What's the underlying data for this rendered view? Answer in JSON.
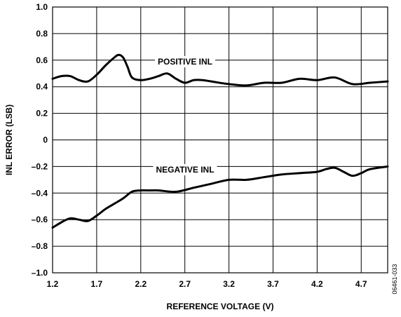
{
  "chart_data": {
    "type": "line",
    "xlabel": "REFERENCE VOLTAGE (V)",
    "ylabel": "INL ERROR (LSB)",
    "xlim": [
      1.2,
      5.0
    ],
    "ylim": [
      -1.0,
      1.0
    ],
    "xticks": [
      1.2,
      1.7,
      2.2,
      2.7,
      3.2,
      3.7,
      4.2,
      4.7
    ],
    "xtick_labels": [
      "1.2",
      "1.7",
      "2.2",
      "2.7",
      "3.2",
      "3.7",
      "4.2",
      "4.7"
    ],
    "yticks": [
      1.0,
      0.8,
      0.6,
      0.4,
      0.2,
      0,
      -0.2,
      -0.4,
      -0.6,
      -0.8,
      -1.0
    ],
    "ytick_labels": [
      "1.0",
      "0.8",
      "0.6",
      "0.4",
      "0.2",
      "0",
      "–0.2",
      "–0.4",
      "–0.6",
      "–0.8",
      "–1.0"
    ],
    "grid": true,
    "figure_id": "06461-033",
    "series": [
      {
        "name": "POSITIVE INL",
        "color": "#000000",
        "x": [
          1.2,
          1.3,
          1.4,
          1.5,
          1.6,
          1.7,
          1.8,
          1.9,
          1.95,
          2.0,
          2.05,
          2.1,
          2.2,
          2.3,
          2.4,
          2.5,
          2.6,
          2.7,
          2.8,
          2.9,
          3.0,
          3.2,
          3.4,
          3.6,
          3.8,
          4.0,
          4.2,
          4.4,
          4.6,
          4.8,
          5.0
        ],
        "y": [
          0.46,
          0.48,
          0.48,
          0.45,
          0.44,
          0.49,
          0.56,
          0.62,
          0.64,
          0.62,
          0.55,
          0.47,
          0.45,
          0.46,
          0.48,
          0.5,
          0.46,
          0.43,
          0.45,
          0.45,
          0.44,
          0.42,
          0.41,
          0.43,
          0.43,
          0.46,
          0.45,
          0.47,
          0.42,
          0.43,
          0.44
        ]
      },
      {
        "name": "NEGATIVE INL",
        "color": "#000000",
        "x": [
          1.2,
          1.3,
          1.4,
          1.5,
          1.6,
          1.7,
          1.8,
          1.9,
          2.0,
          2.1,
          2.2,
          2.3,
          2.4,
          2.6,
          2.8,
          3.0,
          3.2,
          3.4,
          3.6,
          3.8,
          4.0,
          4.2,
          4.3,
          4.4,
          4.5,
          4.6,
          4.7,
          4.8,
          5.0
        ],
        "y": [
          -0.66,
          -0.62,
          -0.59,
          -0.6,
          -0.61,
          -0.57,
          -0.52,
          -0.48,
          -0.44,
          -0.39,
          -0.38,
          -0.38,
          -0.38,
          -0.39,
          -0.36,
          -0.33,
          -0.3,
          -0.3,
          -0.28,
          -0.26,
          -0.25,
          -0.24,
          -0.22,
          -0.21,
          -0.24,
          -0.27,
          -0.25,
          -0.22,
          -0.2
        ]
      }
    ]
  }
}
